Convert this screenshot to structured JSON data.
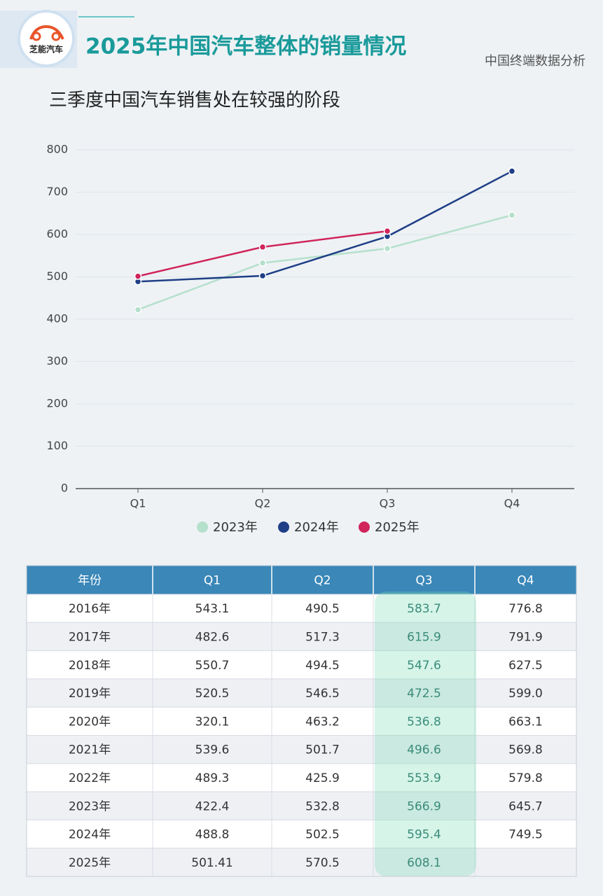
{
  "header": {
    "logo": "芝能汽车",
    "title": "2025年中国汽车整体的销量情况",
    "source": "中国终端数据分析"
  },
  "chart_data": {
    "type": "line",
    "title": "三季度中国汽车销售处在较强的阶段",
    "categories": [
      "Q1",
      "Q2",
      "Q3",
      "Q4"
    ],
    "series": [
      {
        "name": "2023年",
        "color": "#b5e0cc",
        "values": [
          422.4,
          532.8,
          566.9,
          645.7
        ]
      },
      {
        "name": "2024年",
        "color": "#1f3f86",
        "values": [
          488.8,
          502.5,
          595.4,
          749.5
        ]
      },
      {
        "name": "2025年",
        "color": "#d0245a",
        "values": [
          501.41,
          570.5,
          608.1,
          null
        ]
      }
    ],
    "ylim": [
      0,
      800
    ],
    "yticks": [
      0,
      100,
      200,
      300,
      400,
      500,
      600,
      700,
      800
    ],
    "grid": true,
    "legend": "bottom"
  },
  "table": {
    "columns": [
      "年份",
      "Q1",
      "Q2",
      "Q3",
      "Q4"
    ],
    "rows": [
      [
        "2016年",
        "543.1",
        "490.5",
        "583.7",
        "776.8"
      ],
      [
        "2017年",
        "482.6",
        "517.3",
        "615.9",
        "791.9"
      ],
      [
        "2018年",
        "550.7",
        "494.5",
        "547.6",
        "627.5"
      ],
      [
        "2019年",
        "520.5",
        "546.5",
        "472.5",
        "599.0"
      ],
      [
        "2020年",
        "320.1",
        "463.2",
        "536.8",
        "663.1"
      ],
      [
        "2021年",
        "539.6",
        "501.7",
        "496.6",
        "569.8"
      ],
      [
        "2022年",
        "489.3",
        "425.9",
        "553.9",
        "579.8"
      ],
      [
        "2023年",
        "422.4",
        "532.8",
        "566.9",
        "645.7"
      ],
      [
        "2024年",
        "488.8",
        "502.5",
        "595.4",
        "749.5"
      ],
      [
        "2025年",
        "501.41",
        "570.5",
        "608.1"
      ]
    ]
  }
}
